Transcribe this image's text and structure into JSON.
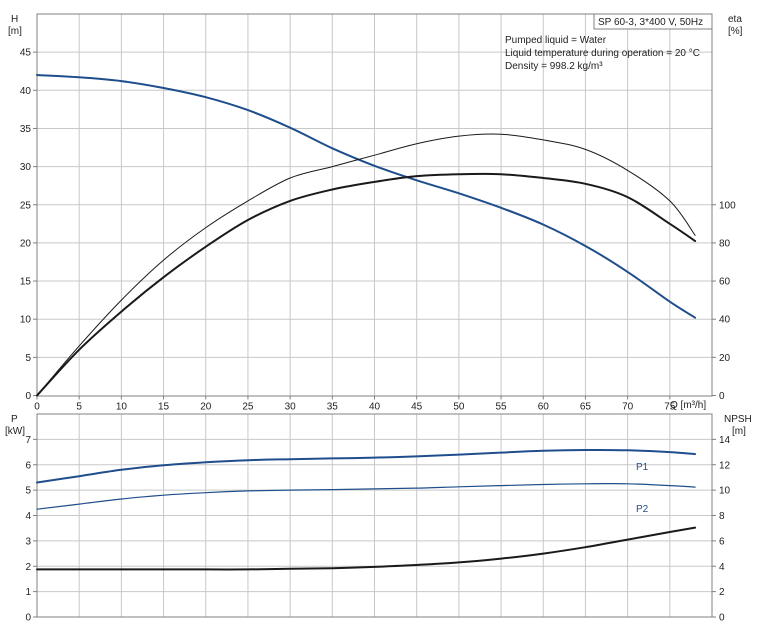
{
  "header_box": "SP 60-3, 3*400 V, 50Hz",
  "info_lines": [
    "Pumped liquid = Water",
    "Liquid temperature during operation = 20 °C",
    "Density = 998.2 kg/m³"
  ],
  "chart_data": [
    {
      "type": "line",
      "panel": "top",
      "x_axis": {
        "label": "Q [m³/h]",
        "range": [
          0,
          80
        ],
        "ticks": [
          0,
          5,
          10,
          15,
          20,
          25,
          30,
          35,
          40,
          45,
          50,
          55,
          60,
          65,
          70,
          75
        ]
      },
      "y_axis_left": {
        "label_line1": "H",
        "label_line2": "[m]",
        "range": [
          0,
          50
        ],
        "ticks": [
          0,
          5,
          10,
          15,
          20,
          25,
          30,
          35,
          40,
          45
        ]
      },
      "y_axis_right": {
        "label_line1": "eta",
        "label_line2": "[%]",
        "range": [
          0,
          100
        ],
        "tick_range": [
          0,
          200
        ],
        "ticks": [
          0,
          20,
          40,
          60,
          80,
          100
        ]
      },
      "grid": true,
      "series": [
        {
          "axis": "left",
          "color": "#1f4e8c",
          "x": [
            0,
            5,
            10,
            15,
            20,
            25,
            30,
            35,
            40,
            45,
            50,
            55,
            60,
            65,
            70,
            75,
            78
          ],
          "y": [
            42,
            41.7,
            41.2,
            40.3,
            39.1,
            37.4,
            35.1,
            32.4,
            30.1,
            28.2,
            26.5,
            24.6,
            22.4,
            19.6,
            16.2,
            12.3,
            10.2
          ]
        },
        {
          "axis": "right",
          "color": "#1a1a1a",
          "x": [
            0,
            5,
            10,
            15,
            20,
            25,
            30,
            35,
            40,
            45,
            50,
            55,
            60,
            65,
            70,
            75,
            78
          ],
          "y": [
            0,
            12,
            22,
            31,
            39,
            46,
            51,
            54,
            56,
            57.5,
            58,
            58,
            57,
            55.5,
            52,
            45,
            40.5
          ]
        },
        {
          "axis": "right",
          "color": "#1a1a1a",
          "x": [
            0,
            5,
            10,
            15,
            20,
            25,
            30,
            35,
            40,
            45,
            50,
            55,
            60,
            65,
            70,
            75,
            78
          ],
          "y": [
            0,
            13,
            25,
            35.5,
            44,
            51,
            57,
            60,
            63,
            66,
            68,
            68.5,
            67,
            64.5,
            59,
            51,
            42
          ]
        }
      ]
    },
    {
      "type": "line",
      "panel": "bottom",
      "x_axis": {
        "range": [
          0,
          80
        ]
      },
      "y_axis_left": {
        "label_line1": "P",
        "label_line2": "[kW]",
        "range": [
          0,
          8
        ],
        "ticks": [
          0,
          1,
          2,
          3,
          4,
          5,
          6,
          7
        ]
      },
      "y_axis_right": {
        "label_line1": "NPSH",
        "label_line2": "[m]",
        "range": [
          0,
          16
        ],
        "ticks": [
          0,
          2,
          4,
          6,
          8,
          10,
          12,
          14
        ]
      },
      "grid": true,
      "series": [
        {
          "name": "P1",
          "axis": "left",
          "color": "#1f4e8c",
          "x": [
            0,
            5,
            10,
            15,
            20,
            25,
            30,
            35,
            40,
            45,
            50,
            55,
            60,
            65,
            70,
            75,
            78
          ],
          "y": [
            5.3,
            5.55,
            5.8,
            5.98,
            6.1,
            6.18,
            6.22,
            6.25,
            6.28,
            6.33,
            6.4,
            6.48,
            6.55,
            6.58,
            6.57,
            6.5,
            6.42
          ]
        },
        {
          "name": "P2",
          "axis": "left",
          "color": "#1f4e8c",
          "x": [
            0,
            5,
            10,
            15,
            20,
            25,
            30,
            35,
            40,
            45,
            50,
            55,
            60,
            65,
            70,
            75,
            78
          ],
          "y": [
            4.25,
            4.45,
            4.65,
            4.8,
            4.9,
            4.97,
            5.0,
            5.02,
            5.05,
            5.08,
            5.13,
            5.18,
            5.22,
            5.25,
            5.25,
            5.18,
            5.12
          ]
        },
        {
          "axis": "right",
          "color": "#1a1a1a",
          "x": [
            0,
            5.5,
            10,
            15,
            20,
            25,
            30,
            35,
            40,
            45,
            50,
            55,
            60,
            65,
            70,
            75,
            78
          ],
          "y": [
            3.75,
            3.75,
            3.75,
            3.75,
            3.75,
            3.75,
            3.8,
            3.85,
            3.95,
            4.1,
            4.3,
            4.6,
            5.0,
            5.5,
            6.1,
            6.7,
            7.05
          ]
        }
      ]
    }
  ]
}
